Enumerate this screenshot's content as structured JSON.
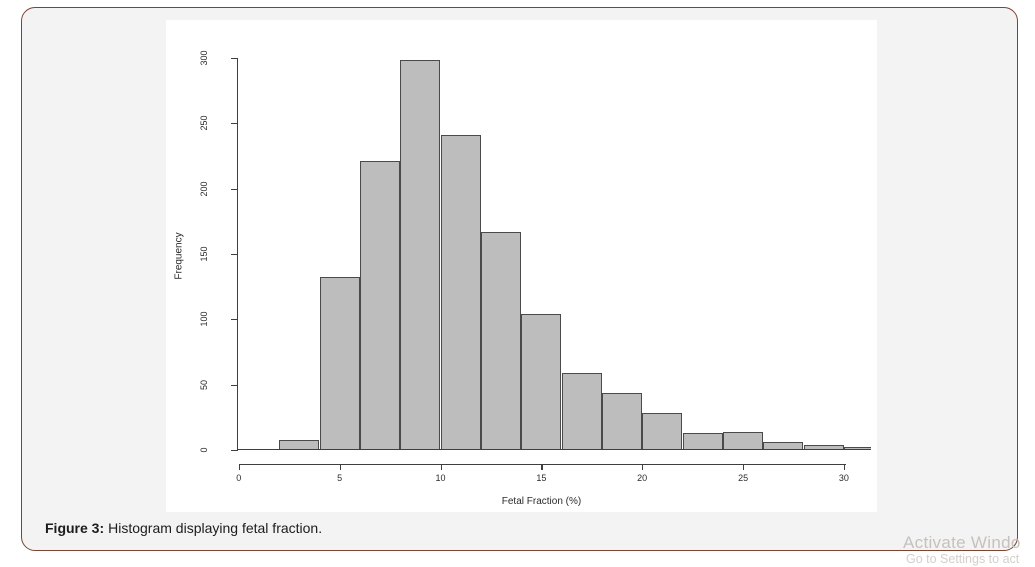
{
  "caption": {
    "prefix": "Figure 3:",
    "text": "Histogram displaying fetal fraction."
  },
  "watermark": {
    "line1": "Activate Windo",
    "line2": "Go to Settings to act"
  },
  "chart_data": {
    "type": "bar",
    "variant": "histogram",
    "title": "",
    "xlabel": "Fetal Fraction (%)",
    "ylabel": "Frequency",
    "bin_width": 2,
    "bin_starts": [
      0,
      2,
      4,
      6,
      8,
      10,
      12,
      14,
      16,
      18,
      20,
      22,
      24,
      26,
      28,
      30
    ],
    "counts": [
      0,
      8,
      132,
      221,
      298,
      241,
      167,
      104,
      59,
      44,
      28,
      13,
      14,
      6,
      4,
      2
    ],
    "x_ticks": [
      0,
      5,
      10,
      15,
      20,
      25,
      30
    ],
    "y_ticks": [
      0,
      50,
      100,
      150,
      200,
      250,
      300
    ],
    "xlim": [
      0,
      32
    ],
    "ylim": [
      0,
      300
    ],
    "grid": false,
    "legend": "none",
    "bar_fill": "#bdbdbd",
    "bar_stroke": "#4a4a4a"
  },
  "colors": {
    "card_border": "#7d4434",
    "card_background": "#f2f3f2",
    "panel_background": "#ffffff",
    "axis": "#3f3f3f",
    "caption_text": "#1c1c1c",
    "watermark_line1": "#c7c1bd",
    "watermark_line2": "#d4cfca"
  }
}
